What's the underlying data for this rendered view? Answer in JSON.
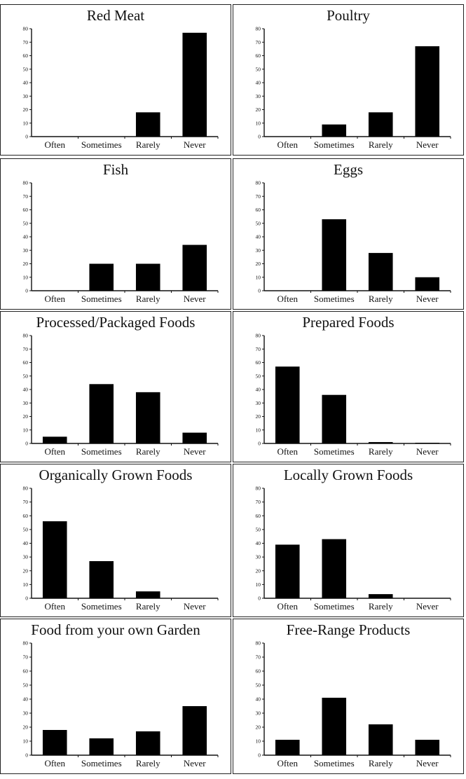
{
  "chart_data": [
    {
      "type": "bar",
      "title": "Red Meat",
      "categories": [
        "Often",
        "Sometimes",
        "Rarely",
        "Never"
      ],
      "values": [
        0,
        0,
        18,
        77
      ],
      "ylim": [
        0,
        80
      ],
      "yticks": [
        0,
        10,
        20,
        30,
        40,
        50,
        60,
        70,
        80
      ],
      "xlabel": "",
      "ylabel": "",
      "colors": {
        "bar": "#000000"
      }
    },
    {
      "type": "bar",
      "title": "Poultry",
      "categories": [
        "Often",
        "Sometimes",
        "Rarely",
        "Never"
      ],
      "values": [
        0,
        9,
        18,
        67
      ],
      "ylim": [
        0,
        80
      ],
      "yticks": [
        0,
        10,
        20,
        30,
        40,
        50,
        60,
        70,
        80
      ],
      "xlabel": "",
      "ylabel": "",
      "colors": {
        "bar": "#000000"
      }
    },
    {
      "type": "bar",
      "title": "Fish",
      "categories": [
        "Often",
        "Sometimes",
        "Rarely",
        "Never"
      ],
      "values": [
        0,
        20,
        20,
        34
      ],
      "ylim": [
        0,
        80
      ],
      "yticks": [
        0,
        10,
        20,
        30,
        40,
        50,
        60,
        70,
        80
      ],
      "xlabel": "",
      "ylabel": "",
      "colors": {
        "bar": "#000000"
      }
    },
    {
      "type": "bar",
      "title": "Eggs",
      "categories": [
        "Often",
        "Sometimes",
        "Rarely",
        "Never"
      ],
      "values": [
        0,
        53,
        28,
        10
      ],
      "ylim": [
        0,
        80
      ],
      "yticks": [
        0,
        10,
        20,
        30,
        40,
        50,
        60,
        70,
        80
      ],
      "xlabel": "",
      "ylabel": "",
      "colors": {
        "bar": "#000000"
      }
    },
    {
      "type": "bar",
      "title": "Processed/Packaged Foods",
      "categories": [
        "Often",
        "Sometimes",
        "Rarely",
        "Never"
      ],
      "values": [
        5,
        44,
        38,
        8
      ],
      "ylim": [
        0,
        80
      ],
      "yticks": [
        0,
        10,
        20,
        30,
        40,
        50,
        60,
        70,
        80
      ],
      "xlabel": "",
      "ylabel": "",
      "colors": {
        "bar": "#000000"
      }
    },
    {
      "type": "bar",
      "title": "Prepared Foods",
      "categories": [
        "Often",
        "Sometimes",
        "Rarely",
        "Never"
      ],
      "values": [
        57,
        36,
        1,
        0.5
      ],
      "ylim": [
        0,
        80
      ],
      "yticks": [
        0,
        10,
        20,
        30,
        40,
        50,
        60,
        70,
        80
      ],
      "xlabel": "",
      "ylabel": "",
      "colors": {
        "bar": "#000000"
      }
    },
    {
      "type": "bar",
      "title": "Organically Grown Foods",
      "categories": [
        "Often",
        "Sometimes",
        "Rarely",
        "Never"
      ],
      "values": [
        56,
        27,
        5,
        0
      ],
      "ylim": [
        0,
        80
      ],
      "yticks": [
        0,
        10,
        20,
        30,
        40,
        50,
        60,
        70,
        80
      ],
      "xlabel": "",
      "ylabel": "",
      "colors": {
        "bar": "#000000"
      }
    },
    {
      "type": "bar",
      "title": "Locally Grown Foods",
      "categories": [
        "Often",
        "Sometimes",
        "Rarely",
        "Never"
      ],
      "values": [
        39,
        43,
        3,
        0
      ],
      "ylim": [
        0,
        80
      ],
      "yticks": [
        0,
        10,
        20,
        30,
        40,
        50,
        60,
        70,
        80
      ],
      "xlabel": "",
      "ylabel": "",
      "colors": {
        "bar": "#000000"
      }
    },
    {
      "type": "bar",
      "title": "Food from your own Garden",
      "categories": [
        "Often",
        "Sometimes",
        "Rarely",
        "Never"
      ],
      "values": [
        18,
        12,
        17,
        35
      ],
      "ylim": [
        0,
        80
      ],
      "yticks": [
        0,
        10,
        20,
        30,
        40,
        50,
        60,
        70,
        80
      ],
      "xlabel": "",
      "ylabel": "",
      "colors": {
        "bar": "#000000"
      }
    },
    {
      "type": "bar",
      "title": "Free-Range Products",
      "categories": [
        "Often",
        "Sometimes",
        "Rarely",
        "Never"
      ],
      "values": [
        11,
        41,
        22,
        11
      ],
      "ylim": [
        0,
        80
      ],
      "yticks": [
        0,
        10,
        20,
        30,
        40,
        50,
        60,
        70,
        80
      ],
      "xlabel": "",
      "ylabel": "",
      "colors": {
        "bar": "#000000"
      }
    }
  ]
}
